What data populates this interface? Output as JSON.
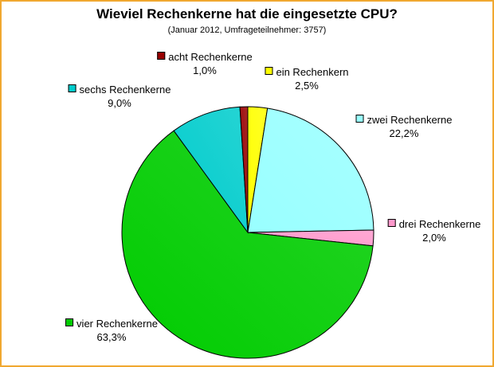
{
  "chart_data": {
    "type": "pie",
    "title": "Wieviel Rechenkerne hat die eingesetzte CPU?",
    "subtitle": "(Januar 2012, Umfrageteilnehmer: 3757)",
    "slices": [
      {
        "label": "ein Rechenkern",
        "value": 2.5,
        "value_label": "2,5%",
        "color": "#ffff00"
      },
      {
        "label": "zwei Rechenkerne",
        "value": 22.2,
        "value_label": "22,2%",
        "color": "#99ffff"
      },
      {
        "label": "drei Rechenkerne",
        "value": 2.0,
        "value_label": "2,0%",
        "color": "#ff99cc"
      },
      {
        "label": "vier Rechenkerne",
        "value": 63.3,
        "value_label": "63,3%",
        "color": "#00cc00"
      },
      {
        "label": "sechs Rechenkerne",
        "value": 9.0,
        "value_label": "9,0%",
        "color": "#00cccc"
      },
      {
        "label": "acht Rechenkerne",
        "value": 1.0,
        "value_label": "1,0%",
        "color": "#990000"
      }
    ],
    "start_angle_deg": 0,
    "direction": "clockwise"
  }
}
